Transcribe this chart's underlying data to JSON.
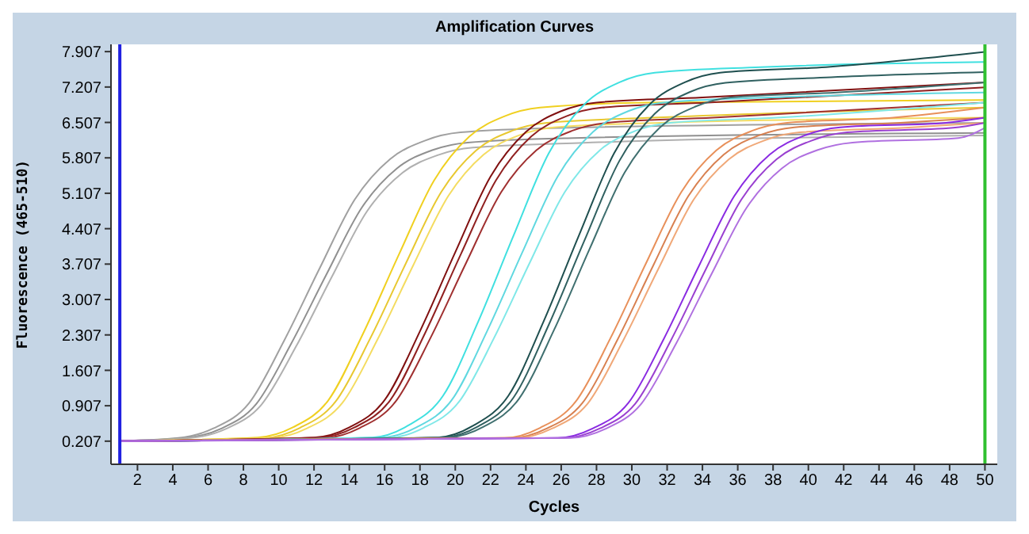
{
  "chart_data": {
    "type": "line",
    "title": "Amplification Curves",
    "xlabel": "Cycles",
    "ylabel": "Fluorescence (465-510)",
    "xlim": [
      0.5,
      50.7
    ],
    "ylim": [
      -0.25,
      8.05
    ],
    "xticks": [
      2,
      4,
      6,
      8,
      10,
      12,
      14,
      16,
      18,
      20,
      22,
      24,
      26,
      28,
      30,
      32,
      34,
      36,
      38,
      40,
      42,
      44,
      46,
      48,
      50
    ],
    "yticks": [
      0.207,
      0.907,
      1.607,
      2.307,
      3.007,
      3.707,
      4.407,
      5.107,
      5.807,
      6.507,
      7.207,
      7.907
    ],
    "grid": false,
    "marker": "none",
    "line_style": "solid",
    "ref_lines": [
      {
        "axis": "x",
        "value": 1,
        "color": "#2020e0"
      },
      {
        "axis": "x",
        "value": 50,
        "color": "#30c030"
      }
    ],
    "series": [
      {
        "color": "#a0a0a0",
        "x": [
          1,
          4.3,
          6.3,
          8.3,
          10.3,
          12.3,
          14.3,
          16.3,
          18.3,
          20.3,
          26.3,
          50
        ],
        "values": [
          0.21,
          0.27,
          0.46,
          0.95,
          2.19,
          3.61,
          4.98,
          5.78,
          6.15,
          6.31,
          6.4,
          6.5
        ]
      },
      {
        "color": "#909090",
        "x": [
          1,
          4.7,
          6.7,
          8.7,
          10.7,
          12.7,
          14.7,
          16.7,
          18.7,
          20.7,
          26.7,
          50
        ],
        "values": [
          0.21,
          0.27,
          0.45,
          0.93,
          2.13,
          3.5,
          4.82,
          5.6,
          5.96,
          6.11,
          6.2,
          6.3
        ]
      },
      {
        "color": "#b0b0b0",
        "x": [
          1,
          5,
          7,
          9,
          11,
          13,
          15,
          17,
          19,
          21,
          27,
          50
        ],
        "values": [
          0.21,
          0.27,
          0.45,
          0.92,
          2.09,
          3.45,
          4.75,
          5.51,
          5.86,
          6.01,
          6.1,
          6.25
        ]
      },
      {
        "color": "#f0d020",
        "x": [
          1,
          8.8,
          10.8,
          12.8,
          14.8,
          16.8,
          18.8,
          20.8,
          22.8,
          24.8,
          30.8,
          50
        ],
        "values": [
          0.21,
          0.28,
          0.48,
          1.01,
          2.35,
          3.89,
          5.36,
          6.23,
          6.63,
          6.8,
          6.9,
          6.95
        ]
      },
      {
        "color": "#e8c830",
        "x": [
          1,
          9.2,
          11.2,
          13.2,
          15.2,
          17.2,
          19.2,
          21.2,
          23.2,
          25.2,
          31.2,
          50
        ],
        "values": [
          0.21,
          0.27,
          0.47,
          0.98,
          2.25,
          3.72,
          5.13,
          5.96,
          6.34,
          6.5,
          6.6,
          6.8
        ]
      },
      {
        "color": "#f4dc60",
        "x": [
          1,
          9.6,
          11.6,
          13.6,
          15.6,
          17.6,
          19.6,
          21.6,
          23.6,
          25.6,
          31.6,
          50
        ],
        "values": [
          0.21,
          0.27,
          0.46,
          0.96,
          2.22,
          3.67,
          5.05,
          5.87,
          6.25,
          6.41,
          6.5,
          6.6
        ]
      },
      {
        "color": "#801010",
        "x": [
          1,
          12,
          14,
          16,
          18,
          20,
          22,
          24,
          26,
          28,
          34,
          50
        ],
        "values": [
          0.21,
          0.28,
          0.48,
          1.02,
          2.38,
          3.94,
          5.44,
          6.32,
          6.73,
          6.9,
          7,
          7.3
        ]
      },
      {
        "color": "#902020",
        "x": [
          1,
          12.3,
          14.3,
          16.3,
          18.3,
          20.3,
          22.3,
          24.3,
          26.3,
          28.3,
          34.3,
          50
        ],
        "values": [
          0.21,
          0.28,
          0.48,
          1.01,
          2.35,
          3.89,
          5.36,
          6.23,
          6.63,
          6.8,
          6.9,
          7.2
        ]
      },
      {
        "color": "#a03030",
        "x": [
          1,
          12.6,
          14.6,
          16.6,
          18.6,
          20.6,
          22.6,
          24.6,
          26.6,
          28.6,
          34.6,
          50
        ],
        "values": [
          0.21,
          0.27,
          0.47,
          0.98,
          2.25,
          3.72,
          5.13,
          5.96,
          6.34,
          6.5,
          6.6,
          6.9
        ]
      },
      {
        "color": "#40e0e0",
        "x": [
          1,
          15.3,
          17.3,
          19.3,
          21.3,
          23.3,
          25.3,
          27.3,
          29.3,
          31.3,
          37.3,
          50
        ],
        "values": [
          0.21,
          0.28,
          0.51,
          1.1,
          2.57,
          4.27,
          5.9,
          6.86,
          7.3,
          7.49,
          7.6,
          7.7
        ]
      },
      {
        "color": "#60d8e0",
        "x": [
          1,
          15.8,
          17.8,
          19.8,
          21.8,
          23.8,
          25.8,
          27.8,
          29.8,
          31.8,
          37.8,
          50
        ],
        "values": [
          0.21,
          0.28,
          0.48,
          1.02,
          2.38,
          3.94,
          5.44,
          6.32,
          6.73,
          6.9,
          7,
          7.1
        ]
      },
      {
        "color": "#80e8e8",
        "x": [
          1,
          16.2,
          18.2,
          20.2,
          22.2,
          24.2,
          26.2,
          28.2,
          30.2,
          32.2,
          38.2,
          50
        ],
        "values": [
          0.21,
          0.27,
          0.47,
          0.98,
          2.25,
          3.72,
          5.13,
          5.96,
          6.34,
          6.5,
          6.6,
          6.9
        ]
      },
      {
        "color": "#1f4f4f",
        "x": [
          1,
          19,
          21,
          23,
          25,
          27,
          29,
          31,
          33,
          35,
          41,
          50
        ],
        "values": [
          0.21,
          0.28,
          0.51,
          1.1,
          2.57,
          4.27,
          5.9,
          6.86,
          7.3,
          7.49,
          7.6,
          7.9
        ]
      },
      {
        "color": "#306060",
        "x": [
          1,
          19.3,
          21.3,
          23.3,
          25.3,
          27.3,
          29.3,
          31.3,
          33.3,
          35.3,
          41.3,
          50
        ],
        "values": [
          0.21,
          0.28,
          0.5,
          1.07,
          2.51,
          4.16,
          5.75,
          6.68,
          7.11,
          7.29,
          7.4,
          7.5
        ]
      },
      {
        "color": "#407070",
        "x": [
          1,
          19.6,
          21.6,
          23.6,
          25.6,
          27.6,
          29.6,
          31.6,
          33.6,
          35.6,
          41.6,
          50
        ],
        "values": [
          0.21,
          0.28,
          0.49,
          1.04,
          2.41,
          4,
          5.52,
          6.41,
          6.82,
          7,
          7.1,
          7.3
        ]
      },
      {
        "color": "#e8905a",
        "x": [
          1,
          22.8,
          24.8,
          26.8,
          28.8,
          30.8,
          32.8,
          34.8,
          36.8,
          38.8,
          44.8,
          50
        ],
        "values": [
          0.21,
          0.27,
          0.47,
          0.98,
          2.25,
          3.72,
          5.13,
          5.96,
          6.34,
          6.5,
          6.6,
          6.8
        ]
      },
      {
        "color": "#d88050",
        "x": [
          1,
          23.2,
          25.2,
          27.2,
          29.2,
          31.2,
          33.2,
          35.2,
          37.2,
          39.2,
          45.2,
          50
        ],
        "values": [
          0.21,
          0.27,
          0.46,
          0.96,
          2.22,
          3.67,
          5.05,
          5.87,
          6.25,
          6.41,
          6.5,
          6.6
        ]
      },
      {
        "color": "#f0a878",
        "x": [
          1,
          23.5,
          25.5,
          27.5,
          29.5,
          31.5,
          33.5,
          35.5,
          37.5,
          39.5,
          45.5,
          50
        ],
        "values": [
          0.21,
          0.27,
          0.46,
          0.95,
          2.19,
          3.61,
          4.98,
          5.78,
          6.15,
          6.31,
          6.4,
          6.5
        ]
      },
      {
        "color": "#8a2be2",
        "x": [
          1,
          25.8,
          27.8,
          29.8,
          31.8,
          33.8,
          35.8,
          37.8,
          39.8,
          41.8,
          47.8,
          50
        ],
        "values": [
          0.21,
          0.27,
          0.46,
          0.96,
          2.22,
          3.67,
          5.05,
          5.87,
          6.25,
          6.41,
          6.5,
          6.6
        ]
      },
      {
        "color": "#9a40d0",
        "x": [
          1,
          26.2,
          28.2,
          30.2,
          32.2,
          34.2,
          36.2,
          38.2,
          40.2,
          42.2,
          48.2,
          50
        ],
        "values": [
          0.21,
          0.27,
          0.46,
          0.95,
          2.19,
          3.61,
          4.98,
          5.78,
          6.15,
          6.31,
          6.4,
          6.5
        ]
      },
      {
        "color": "#b070e0",
        "x": [
          1,
          26.5,
          28.5,
          30.5,
          32.5,
          34.5,
          36.5,
          38.5,
          40.5,
          42.5,
          48.5,
          50
        ],
        "values": [
          0.21,
          0.27,
          0.45,
          0.93,
          2.13,
          3.5,
          4.82,
          5.6,
          5.96,
          6.11,
          6.2,
          6.4
        ]
      }
    ]
  }
}
